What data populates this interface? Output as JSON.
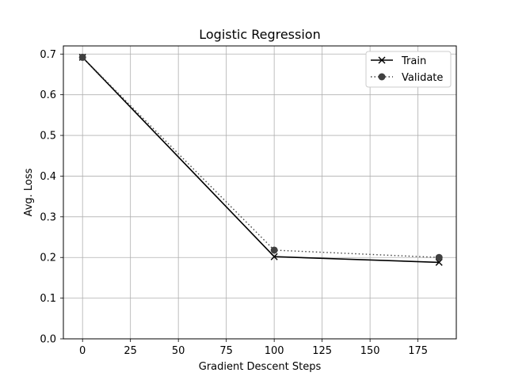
{
  "chart_data": {
    "type": "line",
    "title": "Logistic Regression",
    "xlabel": "Gradient Descent Steps",
    "ylabel": "Avg. Loss",
    "xlim": [
      -10,
      195
    ],
    "ylim": [
      0.0,
      0.72
    ],
    "xticks": [
      0,
      25,
      50,
      75,
      100,
      125,
      150,
      175
    ],
    "yticks": [
      0.0,
      0.1,
      0.2,
      0.3,
      0.4,
      0.5,
      0.6,
      0.7
    ],
    "xtick_labels": [
      "0",
      "25",
      "50",
      "75",
      "100",
      "125",
      "150",
      "175"
    ],
    "ytick_labels": [
      "0.0",
      "0.1",
      "0.2",
      "0.3",
      "0.4",
      "0.5",
      "0.6",
      "0.7"
    ],
    "grid": true,
    "legend_position": "top-right",
    "series": [
      {
        "name": "Train",
        "x": [
          0,
          100,
          186
        ],
        "y": [
          0.692,
          0.202,
          0.188
        ],
        "color": "#000000",
        "line_style": "solid",
        "marker": "x"
      },
      {
        "name": "Validate",
        "x": [
          0,
          100,
          186
        ],
        "y": [
          0.692,
          0.218,
          0.2
        ],
        "color": "#404040",
        "line_style": "dotted",
        "marker": "circle"
      }
    ]
  }
}
